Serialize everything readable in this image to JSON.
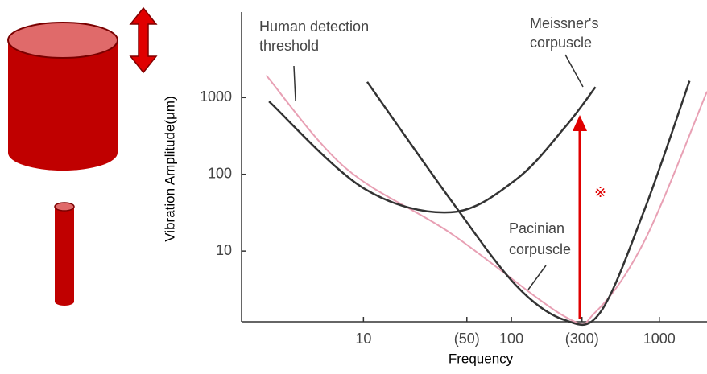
{
  "chart_data": {
    "type": "line",
    "x_label": "Frequency",
    "y_label": "Vibration Amplitude(μm)",
    "log_x": true,
    "log_y": true,
    "xlim": [
      1.5,
      2100
    ],
    "ylim": [
      1.2,
      13000
    ],
    "xticks": [
      10,
      {
        "value": 50,
        "label": "(50)"
      },
      100,
      {
        "value": 300,
        "label": "(300)"
      },
      1000
    ],
    "yticks": [
      10,
      100,
      1000
    ],
    "series": [
      {
        "color": "#e8a0b4",
        "x": [
          2.2,
          7.6,
          39,
          230,
          370,
          800,
          2100
        ],
        "values": [
          1950,
          120,
          17,
          1.4,
          1.6,
          14,
          1200
        ]
      },
      {
        "color": "#333333",
        "x": [
          2.3,
          10,
          39,
          107,
          230,
          370
        ],
        "values": [
          890,
          66,
          32,
          85,
          410,
          1370
        ]
      },
      {
        "color": "#333333",
        "x": [
          10.6,
          39,
          107,
          230,
          400,
          800,
          1600
        ],
        "values": [
          1600,
          46,
          3.6,
          1.26,
          1.6,
          36,
          1650
        ]
      }
    ],
    "annotations": [
      [
        "Human detection",
        "threshold"
      ],
      [
        "Meissner's",
        "corpuscle"
      ],
      [
        "Pacinian",
        "corpuscle"
      ],
      "※"
    ]
  }
}
